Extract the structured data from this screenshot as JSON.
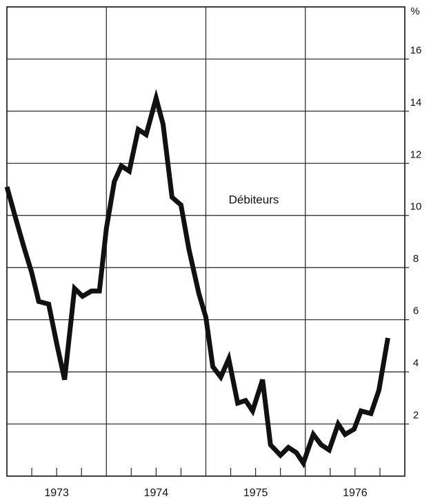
{
  "chart_data": {
    "type": "line",
    "y_unit": "%",
    "annotation": "Débiteurs",
    "x": [
      1973.0,
      1973.08,
      1973.17,
      1973.25,
      1973.32,
      1973.42,
      1973.5,
      1973.58,
      1973.68,
      1973.76,
      1973.85,
      1973.93,
      1974.0,
      1974.08,
      1974.15,
      1974.23,
      1974.32,
      1974.4,
      1974.5,
      1974.57,
      1974.66,
      1974.75,
      1974.83,
      1974.93,
      1975.0,
      1975.07,
      1975.15,
      1975.23,
      1975.32,
      1975.4,
      1975.47,
      1975.57,
      1975.65,
      1975.75,
      1975.83,
      1975.91,
      1975.98,
      1976.08,
      1976.16,
      1976.24,
      1976.33,
      1976.4,
      1976.49,
      1976.56,
      1976.66,
      1976.74,
      1976.83
    ],
    "series": [
      {
        "color": "#111111",
        "values": [
          11.1,
          10.0,
          8.8,
          7.8,
          6.7,
          6.6,
          5.1,
          3.7,
          7.2,
          6.9,
          7.1,
          7.1,
          9.5,
          11.3,
          11.9,
          11.7,
          13.3,
          13.1,
          14.5,
          13.5,
          10.7,
          10.4,
          8.7,
          7.0,
          6.1,
          4.2,
          3.8,
          4.5,
          2.8,
          2.9,
          2.5,
          3.7,
          1.2,
          0.8,
          1.1,
          0.9,
          0.5,
          1.6,
          1.2,
          1.0,
          2.0,
          1.6,
          1.8,
          2.5,
          2.4,
          3.3,
          5.3
        ]
      }
    ],
    "xlim": [
      1973,
      1977
    ],
    "xticks": [
      1973.25,
      1973.5,
      1973.75,
      1974.25,
      1974.5,
      1974.75,
      1975.25,
      1975.5,
      1975.75,
      1976.25,
      1976.5,
      1976.75
    ],
    "year_lines": [
      1974,
      1975,
      1976
    ],
    "year_labels": [
      {
        "value": 1973.5,
        "label": "1973"
      },
      {
        "value": 1974.5,
        "label": "1974"
      },
      {
        "value": 1975.5,
        "label": "1975"
      },
      {
        "value": 1976.5,
        "label": "1976"
      }
    ],
    "ylim": [
      0,
      18
    ],
    "yticks": [
      2,
      4,
      6,
      8,
      10,
      12,
      14,
      16
    ],
    "grid": true
  }
}
